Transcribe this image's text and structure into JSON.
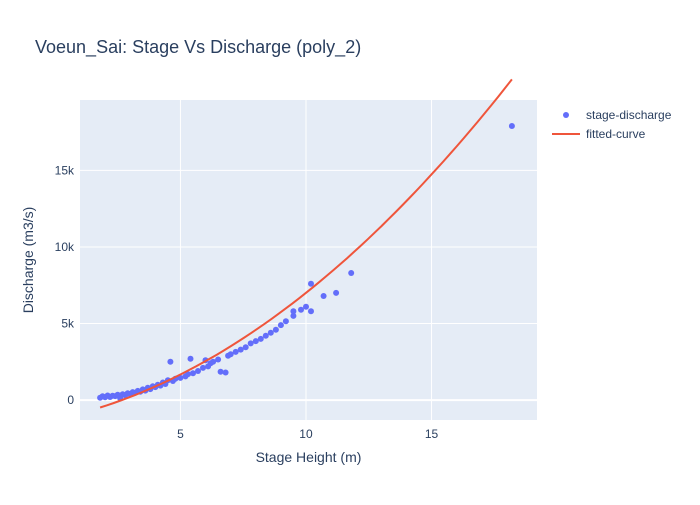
{
  "chart_data": {
    "type": "scatter",
    "title": "Voeun_Sai: Stage Vs Discharge (poly_2)",
    "xlabel": "Stage Height (m)",
    "ylabel": "Discharge (m3/s)",
    "xlim": [
      1.0,
      19.2
    ],
    "ylim": [
      -1300,
      19600
    ],
    "x_ticks": [
      5,
      10,
      15
    ],
    "x_tick_labels": [
      "5",
      "10",
      "15"
    ],
    "y_ticks": [
      0,
      5000,
      10000,
      15000
    ],
    "y_tick_labels": [
      "0",
      "5k",
      "10k",
      "15k"
    ],
    "grid": true,
    "legend_position": "top-right",
    "background_color": "#e5ecf6",
    "series": [
      {
        "name": "stage-discharge",
        "mode": "markers",
        "color": "#636efa",
        "points": [
          [
            1.8,
            150
          ],
          [
            1.9,
            250
          ],
          [
            2.0,
            180
          ],
          [
            2.1,
            300
          ],
          [
            2.2,
            200
          ],
          [
            2.3,
            280
          ],
          [
            2.4,
            260
          ],
          [
            2.5,
            350
          ],
          [
            2.6,
            120
          ],
          [
            2.7,
            380
          ],
          [
            2.8,
            320
          ],
          [
            2.9,
            450
          ],
          [
            3.0,
            400
          ],
          [
            3.1,
            520
          ],
          [
            3.2,
            480
          ],
          [
            3.3,
            600
          ],
          [
            3.4,
            550
          ],
          [
            3.5,
            700
          ],
          [
            3.6,
            620
          ],
          [
            3.7,
            800
          ],
          [
            3.8,
            720
          ],
          [
            3.9,
            900
          ],
          [
            4.0,
            850
          ],
          [
            4.1,
            1000
          ],
          [
            4.2,
            950
          ],
          [
            4.3,
            1150
          ],
          [
            4.4,
            1050
          ],
          [
            4.5,
            1300
          ],
          [
            4.6,
            2500
          ],
          [
            4.7,
            1250
          ],
          [
            4.8,
            1400
          ],
          [
            5.0,
            1450
          ],
          [
            5.2,
            1550
          ],
          [
            5.3,
            1700
          ],
          [
            5.4,
            2700
          ],
          [
            5.5,
            1750
          ],
          [
            5.7,
            1900
          ],
          [
            5.9,
            2100
          ],
          [
            6.0,
            2600
          ],
          [
            6.1,
            2200
          ],
          [
            6.2,
            2400
          ],
          [
            6.3,
            2500
          ],
          [
            6.5,
            2650
          ],
          [
            6.6,
            1850
          ],
          [
            6.8,
            1800
          ],
          [
            6.9,
            2900
          ],
          [
            7.0,
            3000
          ],
          [
            7.2,
            3150
          ],
          [
            7.4,
            3300
          ],
          [
            7.6,
            3450
          ],
          [
            7.8,
            3700
          ],
          [
            8.0,
            3850
          ],
          [
            8.2,
            4000
          ],
          [
            8.4,
            4200
          ],
          [
            8.6,
            4400
          ],
          [
            8.8,
            4600
          ],
          [
            9.0,
            4900
          ],
          [
            9.2,
            5150
          ],
          [
            9.5,
            5500
          ],
          [
            9.5,
            5800
          ],
          [
            9.8,
            5900
          ],
          [
            10.0,
            6100
          ],
          [
            10.2,
            7600
          ],
          [
            10.2,
            5800
          ],
          [
            10.7,
            6800
          ],
          [
            11.2,
            7000
          ],
          [
            11.8,
            8300
          ],
          [
            18.2,
            17900
          ]
        ]
      },
      {
        "name": "fitted-curve",
        "mode": "lines",
        "color": "#ef553b",
        "points": [
          [
            1.8,
            50
          ],
          [
            3.0,
            380
          ],
          [
            4.0,
            860
          ],
          [
            5.0,
            1500
          ],
          [
            6.0,
            2280
          ],
          [
            7.0,
            3190
          ],
          [
            8.0,
            4230
          ],
          [
            9.0,
            5420
          ],
          [
            10.0,
            6740
          ],
          [
            11.0,
            8190
          ],
          [
            12.0,
            9790
          ],
          [
            13.0,
            11520
          ],
          [
            14.0,
            13390
          ],
          [
            15.0,
            15400
          ],
          [
            16.0,
            17540
          ],
          [
            17.0,
            19830
          ],
          [
            18.2,
            18650
          ]
        ]
      }
    ]
  }
}
